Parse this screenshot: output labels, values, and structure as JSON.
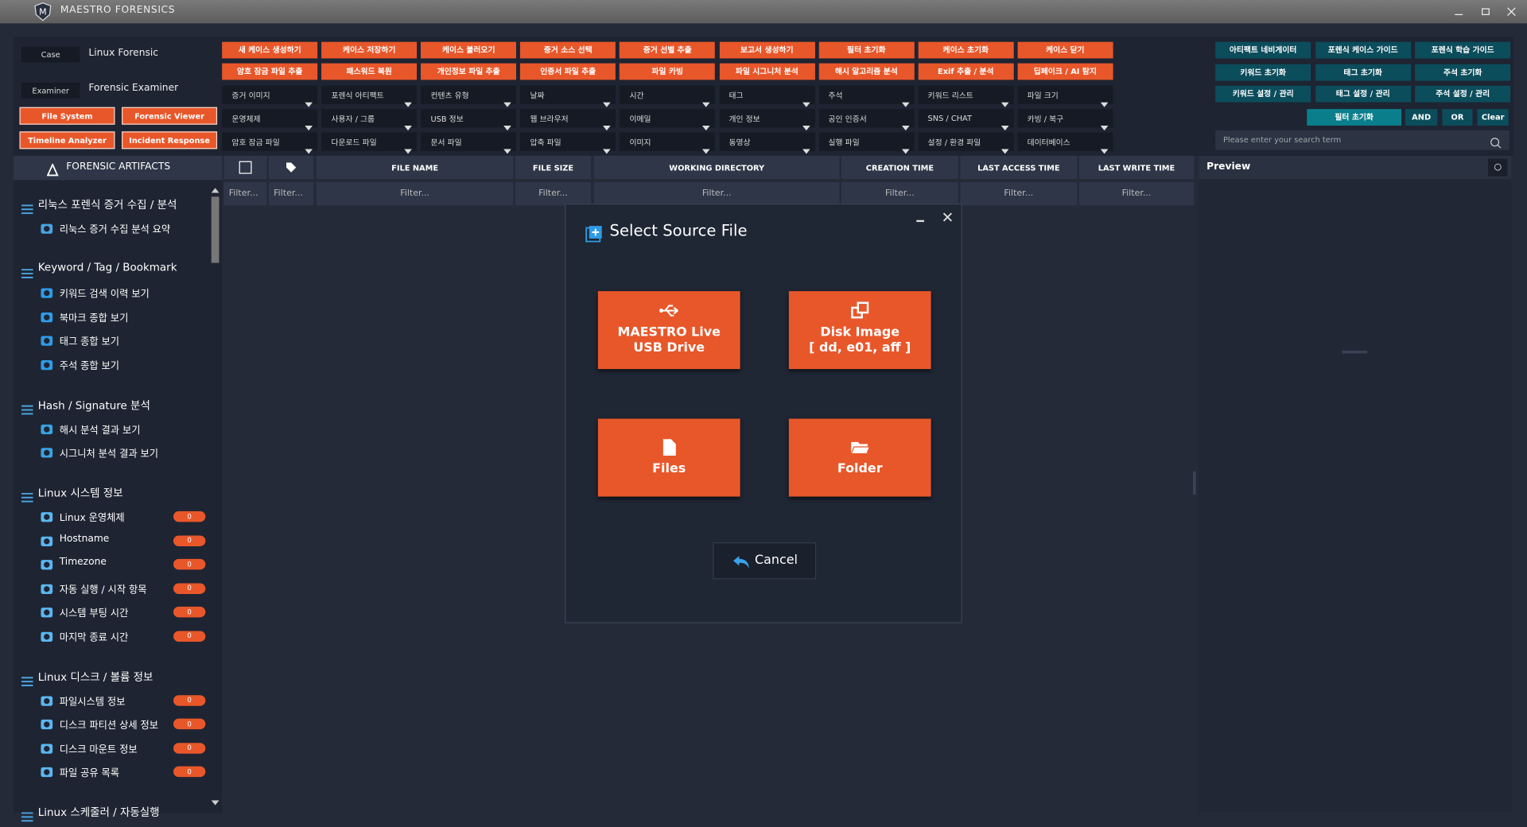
{
  "app": {
    "title": "MAESTRO FORENSICS"
  },
  "case": {
    "case_label": "Case",
    "case_value": "Linux Forensic",
    "examiner_label": "Examiner",
    "examiner_value": "Forensic Examiner"
  },
  "nav": [
    "File System",
    "Forensic Viewer",
    "Timeline Analyzer",
    "Incident Response"
  ],
  "toolbar": {
    "actions": [
      [
        "새 케이스 생성하기",
        "케이스 저장하기",
        "케이스 불러오기",
        "증거 소스 선택",
        "증거 선별 추출",
        "보고서 생성하기",
        "필터 초기화",
        "케이스 초기화",
        "케이스 닫기"
      ],
      [
        "암호 잠금 파일 추출",
        "패스워드 복원",
        "개인정보 파일 추출",
        "인증서 파일 추출",
        "파일 카빙",
        "파일 시그니처 분석",
        "해시 알고리즘 분석",
        "Exif 추출 / 분석",
        "딥페이크 / AI 탐지"
      ]
    ],
    "filters": [
      [
        "증거 이미지",
        "포렌식 아티팩트",
        "컨텐츠 유형",
        "날짜",
        "시간",
        "태그",
        "주석",
        "키워드 리스트",
        "파일 크기"
      ],
      [
        "운영체제",
        "사용자 / 그룹",
        "USB 정보",
        "웹 브라우저",
        "이메일",
        "개인 정보",
        "공인 인증서",
        "SNS / CHAT",
        "카빙 / 복구"
      ],
      [
        "암호 잠금 파일",
        "다운로드 파일",
        "문서 파일",
        "압축 파일",
        "이미지",
        "동영상",
        "실행 파일",
        "설정 / 환경 파일",
        "데이터베이스"
      ]
    ]
  },
  "right_panel": {
    "buttons": [
      [
        "아티팩트 네비게이터",
        "포렌식 케이스 가이드",
        "포렌식 학습 가이드"
      ],
      [
        "키워드 초기화",
        "태그 초기화",
        "주석 초기화"
      ],
      [
        "키워드 설정 / 관리",
        "태그 설정 / 관리",
        "주석 설정 / 관리"
      ]
    ],
    "search_buttons": [
      "필터 초기화",
      "AND",
      "OR",
      "Clear"
    ],
    "search_placeholder": "Please enter your search term"
  },
  "sidebar": {
    "title": "FORENSIC ARTIFACTS",
    "groups": [
      {
        "title": "리눅스 포렌식 증거 수집 / 분석",
        "items": [
          {
            "label": "리눅스 증거 수집 분석 요약"
          }
        ]
      },
      {
        "title": "Keyword / Tag / Bookmark",
        "items": [
          {
            "label": "키워드 검색 이력 보기"
          },
          {
            "label": "북마크 종합 보기"
          },
          {
            "label": "태그 종합 보기"
          },
          {
            "label": "주석 종합 보기"
          }
        ]
      },
      {
        "title": "Hash / Signature 분석",
        "items": [
          {
            "label": "해시 분석 결과 보기"
          },
          {
            "label": "시그니처 분석 결과 보기"
          }
        ]
      },
      {
        "title": "Linux 시스템 정보",
        "items": [
          {
            "label": "Linux 운영체제",
            "count": 0
          },
          {
            "label": "Hostname",
            "count": 0
          },
          {
            "label": "Timezone",
            "count": 0
          },
          {
            "label": "자동 실행 / 시작 항목",
            "count": 0
          },
          {
            "label": "시스템 부팅 시간",
            "count": 0
          },
          {
            "label": "마지막 종료 시간",
            "count": 0
          }
        ]
      },
      {
        "title": "Linux 디스크 / 볼륨 정보",
        "items": [
          {
            "label": "파일시스템 정보",
            "count": 0
          },
          {
            "label": "디스크 파티션 상세 정보",
            "count": 0
          },
          {
            "label": "디스크 마운트 정보",
            "count": 0
          },
          {
            "label": "파일 공유 목록",
            "count": 0
          }
        ]
      },
      {
        "title": "Linux 스케줄러 / 자동실행",
        "items": []
      }
    ]
  },
  "table": {
    "columns": [
      "FILE NAME",
      "FILE SIZE",
      "WORKING DIRECTORY",
      "CREATION TIME",
      "LAST ACCESS TIME",
      "LAST WRITE TIME"
    ],
    "filters": [
      "Filter...",
      "Filter...",
      "Filter...",
      "Filter...",
      "Filter...",
      "Filter...",
      "Filter...",
      "Filter..."
    ]
  },
  "preview": {
    "title": "Preview"
  },
  "dialog": {
    "title": "Select Source File",
    "options": [
      [
        "MAESTRO Live",
        "USB Drive"
      ],
      [
        "Disk Image",
        "[ dd, e01, aff ]"
      ],
      [
        "Files"
      ],
      [
        "Folder"
      ]
    ],
    "cancel": "Cancel"
  }
}
